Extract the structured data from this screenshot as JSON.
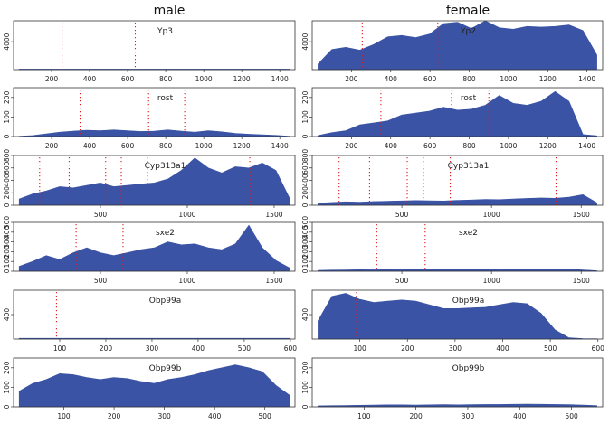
{
  "column_titles": [
    "male",
    "female"
  ],
  "colors": {
    "area": "#3a53a4",
    "marker": "#e41a1c",
    "frame": "#333333"
  },
  "chart_data": [
    {
      "type": "area",
      "col": 0,
      "row": 0,
      "gene": "Yp3",
      "xlim": [
        0,
        1480
      ],
      "ylim": [
        0,
        7000
      ],
      "xticks": [
        200,
        400,
        600,
        800,
        1000,
        1200,
        1400
      ],
      "yticks": [
        4000
      ],
      "markers": [
        255,
        640
      ],
      "values": [
        80,
        80,
        80,
        80,
        80,
        80,
        80,
        80,
        80,
        80,
        80,
        80,
        80,
        80,
        80,
        80,
        80,
        80,
        80,
        80,
        80
      ]
    },
    {
      "type": "area",
      "col": 1,
      "row": 0,
      "gene": "Yp2",
      "xlim": [
        0,
        1480
      ],
      "ylim": [
        0,
        7000
      ],
      "xticks": [
        200,
        400,
        600,
        800,
        1000,
        1200,
        1400
      ],
      "yticks": [
        4000
      ],
      "markers": [
        255,
        640
      ],
      "values": [
        800,
        2900,
        3200,
        2800,
        3600,
        4700,
        4900,
        4600,
        5100,
        6600,
        6800,
        5900,
        7000,
        6000,
        5800,
        6200,
        6100,
        6200,
        6400,
        5600,
        2100
      ]
    },
    {
      "type": "area",
      "col": 0,
      "row": 1,
      "gene": "rost",
      "xlim": [
        0,
        1480
      ],
      "ylim": [
        0,
        250
      ],
      "xticks": [
        200,
        400,
        600,
        800,
        1000,
        1200,
        1400
      ],
      "yticks": [
        0,
        100,
        200
      ],
      "markers": [
        350,
        710,
        900
      ],
      "values": [
        2,
        5,
        14,
        22,
        28,
        32,
        30,
        34,
        30,
        26,
        28,
        34,
        28,
        22,
        30,
        24,
        16,
        12,
        9,
        6,
        2
      ]
    },
    {
      "type": "area",
      "col": 1,
      "row": 1,
      "gene": "rost",
      "xlim": [
        0,
        1480
      ],
      "ylim": [
        0,
        250
      ],
      "xticks": [
        200,
        400,
        600,
        800,
        1000,
        1200,
        1400
      ],
      "yticks": [
        0,
        100,
        200
      ],
      "markers": [
        350,
        710,
        900
      ],
      "values": [
        5,
        20,
        30,
        60,
        70,
        80,
        110,
        120,
        130,
        150,
        135,
        140,
        160,
        210,
        170,
        160,
        180,
        230,
        180,
        10,
        4
      ]
    },
    {
      "type": "area",
      "col": 0,
      "row": 2,
      "gene": "Cyp313a1",
      "xlim": [
        0,
        1620
      ],
      "ylim": [
        0,
        800
      ],
      "xticks": [
        500,
        1000,
        1500
      ],
      "yticks": [
        0,
        200,
        400,
        600,
        800
      ],
      "markers": [
        150,
        320,
        530,
        620,
        770,
        1360
      ],
      "values": [
        100,
        180,
        230,
        300,
        280,
        320,
        360,
        300,
        320,
        340,
        360,
        420,
        560,
        760,
        600,
        520,
        620,
        600,
        680,
        560,
        120
      ]
    },
    {
      "type": "area",
      "col": 1,
      "row": 2,
      "gene": "Cyp313a1",
      "xlim": [
        0,
        1620
      ],
      "ylim": [
        0,
        800
      ],
      "xticks": [
        500,
        1000,
        1500
      ],
      "yticks": [
        0,
        200,
        400,
        600,
        800
      ],
      "markers": [
        150,
        320,
        530,
        620,
        770,
        1360
      ],
      "values": [
        35,
        45,
        55,
        50,
        60,
        65,
        70,
        75,
        72,
        68,
        78,
        85,
        95,
        90,
        100,
        110,
        118,
        112,
        130,
        170,
        40
      ]
    },
    {
      "type": "area",
      "col": 0,
      "row": 3,
      "gene": "sxe2",
      "xlim": [
        0,
        1620
      ],
      "ylim": [
        0,
        500
      ],
      "xticks": [
        500,
        1000,
        1500
      ],
      "yticks": [
        0,
        100,
        200,
        300,
        400,
        500
      ],
      "markers": [
        360,
        630
      ],
      "values": [
        50,
        100,
        160,
        120,
        190,
        240,
        190,
        160,
        190,
        220,
        240,
        300,
        270,
        280,
        240,
        220,
        280,
        470,
        240,
        110,
        35
      ]
    },
    {
      "type": "area",
      "col": 1,
      "row": 3,
      "gene": "sxe2",
      "xlim": [
        0,
        1620
      ],
      "ylim": [
        0,
        500
      ],
      "xticks": [
        500,
        1000,
        1500
      ],
      "yticks": [
        0,
        100,
        200,
        300,
        400,
        500
      ],
      "markers": [
        360,
        630
      ],
      "values": [
        8,
        12,
        14,
        16,
        15,
        17,
        18,
        16,
        20,
        19,
        21,
        20,
        22,
        18,
        20,
        19,
        22,
        24,
        20,
        14,
        6
      ]
    },
    {
      "type": "area",
      "col": 0,
      "row": 4,
      "gene": "Obp99a",
      "xlim": [
        0,
        610
      ],
      "ylim": [
        0,
        800
      ],
      "xticks": [
        100,
        200,
        300,
        400,
        500,
        600
      ],
      "yticks": [
        400
      ],
      "markers": [
        93
      ],
      "values": [
        12,
        12,
        12,
        12,
        12,
        12,
        12,
        12,
        12,
        12,
        12,
        12,
        12,
        12,
        12,
        12,
        12,
        12,
        12,
        12,
        12
      ]
    },
    {
      "type": "area",
      "col": 1,
      "row": 4,
      "gene": "Obp99a",
      "xlim": [
        0,
        610
      ],
      "ylim": [
        0,
        800
      ],
      "xticks": [
        100,
        200,
        300,
        400,
        500,
        600
      ],
      "yticks": [
        400
      ],
      "markers": [
        93
      ],
      "values": [
        300,
        700,
        750,
        650,
        600,
        620,
        640,
        620,
        560,
        500,
        500,
        510,
        520,
        560,
        600,
        580,
        420,
        150,
        20,
        8,
        5
      ]
    },
    {
      "type": "area",
      "col": 0,
      "row": 5,
      "gene": "Obp99b",
      "xlim": [
        0,
        560
      ],
      "ylim": [
        0,
        250
      ],
      "xticks": [
        100,
        200,
        300,
        400,
        500
      ],
      "yticks": [
        0,
        100,
        200
      ],
      "markers": [],
      "values": [
        80,
        120,
        140,
        170,
        165,
        150,
        140,
        150,
        145,
        130,
        120,
        140,
        150,
        165,
        185,
        200,
        215,
        200,
        180,
        110,
        60
      ]
    },
    {
      "type": "area",
      "col": 1,
      "row": 5,
      "gene": "Obp99b",
      "xlim": [
        0,
        560
      ],
      "ylim": [
        0,
        250
      ],
      "xticks": [
        100,
        200,
        300,
        400,
        500
      ],
      "yticks": [
        0,
        100,
        200
      ],
      "markers": [],
      "values": [
        5,
        6,
        7,
        8,
        9,
        10,
        10,
        9,
        10,
        11,
        10,
        11,
        12,
        12,
        13,
        14,
        13,
        12,
        11,
        9,
        6
      ]
    }
  ]
}
